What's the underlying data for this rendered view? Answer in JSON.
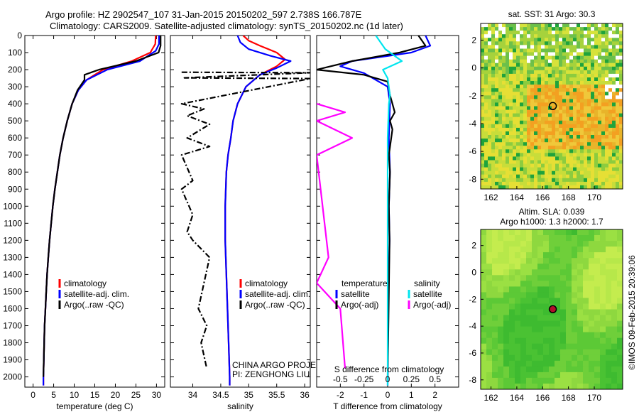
{
  "header": {
    "line1": "Argo profile: HZ 2902547_107 31-Jan-2015 20150202_597 2.738S 166.787E",
    "line2": "Climatology: CARS2009. Satellite-adjusted climatology: synTS_20150202.nc (1d later)"
  },
  "credit": "©IMOS 09-Feb-2015 20:39:06",
  "colors": {
    "climatology": "#ff0000",
    "satellite": "#0000ff",
    "argo": "#000000",
    "salinity_satellite": "#00e5ee",
    "salinity_argo": "#ff00ff"
  },
  "chart_data": [
    {
      "type": "line",
      "panel": "temperature",
      "xlabel": "temperature (deg C)",
      "xlim": [
        -2,
        32
      ],
      "xticks": [
        0,
        5,
        10,
        15,
        20,
        25,
        30
      ],
      "ylim": [
        0,
        2060
      ],
      "yticks": [
        0,
        100,
        200,
        300,
        400,
        500,
        600,
        700,
        800,
        900,
        1000,
        1100,
        1200,
        1300,
        1400,
        1500,
        1600,
        1700,
        1800,
        1900,
        2000
      ],
      "legend": [
        "climatology",
        "satellite-adj. clim.",
        "Argo(..raw -QC)"
      ],
      "series": [
        {
          "name": "climatology",
          "color": "#ff0000",
          "points": [
            [
              29.8,
              0
            ],
            [
              29.7,
              50
            ],
            [
              28.5,
              100
            ],
            [
              24,
              150
            ],
            [
              17,
              200
            ],
            [
              13,
              260
            ],
            [
              11,
              320
            ],
            [
              9.5,
              400
            ],
            [
              8.3,
              500
            ],
            [
              7.3,
              600
            ],
            [
              6.5,
              700
            ],
            [
              5.9,
              800
            ],
            [
              5.3,
              900
            ],
            [
              4.8,
              1000
            ],
            [
              4.4,
              1100
            ],
            [
              4.0,
              1200
            ],
            [
              3.7,
              1300
            ],
            [
              3.4,
              1400
            ],
            [
              3.2,
              1500
            ],
            [
              3.0,
              1600
            ],
            [
              2.8,
              1700
            ],
            [
              2.7,
              1800
            ],
            [
              2.6,
              1900
            ],
            [
              2.5,
              2000
            ],
            [
              2.5,
              2050
            ]
          ]
        },
        {
          "name": "satellite-adj. clim.",
          "color": "#0000ff",
          "points": [
            [
              30.6,
              0
            ],
            [
              30.6,
              50
            ],
            [
              29.8,
              90
            ],
            [
              26,
              150
            ],
            [
              18,
              200
            ],
            [
              13,
              260
            ],
            [
              11,
              320
            ],
            [
              9.5,
              400
            ],
            [
              8.3,
              500
            ],
            [
              7.3,
              600
            ],
            [
              6.5,
              700
            ],
            [
              5.9,
              800
            ],
            [
              5.3,
              900
            ],
            [
              4.8,
              1000
            ],
            [
              4.4,
              1100
            ],
            [
              4.0,
              1200
            ],
            [
              3.7,
              1300
            ],
            [
              3.4,
              1400
            ],
            [
              3.2,
              1500
            ],
            [
              3.0,
              1600
            ],
            [
              2.8,
              1700
            ],
            [
              2.7,
              1800
            ],
            [
              2.6,
              1900
            ],
            [
              2.5,
              2000
            ],
            [
              2.5,
              2050
            ]
          ]
        },
        {
          "name": "Argo(..raw -QC)",
          "color": "#000000",
          "points": [
            [
              31.0,
              0
            ],
            [
              31.0,
              60
            ],
            [
              30.5,
              100
            ],
            [
              25,
              150
            ],
            [
              16,
              200
            ],
            [
              12.5,
              230
            ],
            [
              12.5,
              260
            ],
            [
              10.8,
              320
            ],
            [
              9.5,
              400
            ],
            [
              8.3,
              500
            ],
            [
              7.3,
              600
            ],
            [
              6.5,
              700
            ],
            [
              5.9,
              800
            ],
            [
              5.3,
              900
            ],
            [
              4.8,
              1000
            ],
            [
              4.4,
              1100
            ],
            [
              4.0,
              1200
            ],
            [
              3.7,
              1300
            ],
            [
              3.4,
              1400
            ],
            [
              3.2,
              1500
            ],
            [
              3.0,
              1600
            ],
            [
              2.8,
              1700
            ],
            [
              2.7,
              1800
            ],
            [
              2.6,
              1900
            ],
            [
              2.5,
              2000
            ]
          ]
        }
      ]
    },
    {
      "type": "line",
      "panel": "salinity",
      "xlabel": "salinity",
      "xlim": [
        33.6,
        36.1
      ],
      "xticks": [
        34,
        34.5,
        35,
        35.5,
        36
      ],
      "ylim": [
        0,
        2060
      ],
      "legend": [
        "climatology",
        "satellite-adj. clim.",
        "Argo(..raw -QC)"
      ],
      "annotation": [
        "CHINA ARGO PROJECT",
        "PI: ZENGHONG LIU"
      ],
      "series": [
        {
          "name": "climatology",
          "color": "#ff0000",
          "points": [
            [
              34.9,
              0
            ],
            [
              35.0,
              30
            ],
            [
              35.2,
              60
            ],
            [
              35.5,
              100
            ],
            [
              35.65,
              140
            ],
            [
              35.5,
              180
            ],
            [
              35.2,
              230
            ],
            [
              34.95,
              300
            ],
            [
              34.8,
              400
            ],
            [
              34.72,
              500
            ],
            [
              34.68,
              600
            ],
            [
              34.63,
              700
            ],
            [
              34.6,
              800
            ],
            [
              34.58,
              1000
            ],
            [
              34.58,
              1200
            ],
            [
              34.6,
              1400
            ],
            [
              34.62,
              1600
            ],
            [
              34.64,
              1800
            ],
            [
              34.66,
              2000
            ],
            [
              34.66,
              2050
            ]
          ]
        },
        {
          "name": "satellite-adj. clim.",
          "color": "#0000ff",
          "points": [
            [
              34.8,
              0
            ],
            [
              34.85,
              40
            ],
            [
              35.0,
              80
            ],
            [
              35.4,
              120
            ],
            [
              35.75,
              150
            ],
            [
              35.5,
              190
            ],
            [
              35.2,
              230
            ],
            [
              34.95,
              300
            ],
            [
              34.8,
              400
            ],
            [
              34.72,
              500
            ],
            [
              34.68,
              600
            ],
            [
              34.63,
              700
            ],
            [
              34.6,
              800
            ],
            [
              34.58,
              1000
            ],
            [
              34.58,
              1200
            ],
            [
              34.6,
              1400
            ],
            [
              34.62,
              1600
            ],
            [
              34.64,
              1800
            ],
            [
              34.66,
              2000
            ],
            [
              34.66,
              2050
            ]
          ]
        },
        {
          "name": "Argo(..raw -QC)",
          "color": "#000000",
          "points": [
            [
              33.8,
              215
            ],
            [
              36.1,
              218
            ],
            [
              33.85,
              248
            ],
            [
              36.1,
              252
            ],
            [
              33.8,
              400
            ],
            [
              34.2,
              430
            ],
            [
              33.9,
              470
            ],
            [
              34.3,
              520
            ],
            [
              33.9,
              600
            ],
            [
              34.3,
              650
            ],
            [
              33.8,
              700
            ],
            [
              34.0,
              850
            ],
            [
              33.8,
              900
            ],
            [
              34.0,
              1050
            ],
            [
              33.9,
              1150
            ],
            [
              34.0,
              1200
            ],
            [
              34.3,
              1300
            ],
            [
              34.2,
              1450
            ],
            [
              34.1,
              1600
            ],
            [
              34.25,
              1700
            ],
            [
              34.15,
              1800
            ],
            [
              34.25,
              1950
            ]
          ]
        }
      ]
    },
    {
      "type": "line",
      "panel": "difference",
      "xlabel": "T difference from climatology",
      "xlabel_top": "S difference from climatology",
      "xlim": [
        -3,
        3
      ],
      "xticks": [
        -2,
        -1,
        0,
        1,
        2
      ],
      "xticks_top": [
        "-0.5",
        "-0.25",
        "0",
        "0.25",
        "0.5"
      ],
      "ylim": [
        0,
        2060
      ],
      "legend_temperature": {
        "title": "temperature",
        "items": [
          "satellite",
          "Argo(-adj)"
        ]
      },
      "legend_salinity": {
        "title": "salinity",
        "items": [
          "satellite",
          "Argo(-adj)"
        ]
      },
      "series": [
        {
          "name": "temperature satellite",
          "color": "#0000ff",
          "points": [
            [
              1.6,
              0
            ],
            [
              1.8,
              60
            ],
            [
              1.0,
              100
            ],
            [
              -1.5,
              150
            ],
            [
              -2.0,
              180
            ],
            [
              -1.0,
              220
            ],
            [
              0,
              300
            ],
            [
              0.1,
              400
            ],
            [
              0.05,
              600
            ],
            [
              0.1,
              800
            ],
            [
              0.05,
              1000
            ],
            [
              0.08,
              1200
            ],
            [
              0.03,
              1500
            ],
            [
              0,
              2050
            ]
          ]
        },
        {
          "name": "temperature Argo(-adj)",
          "color": "#000000",
          "points": [
            [
              1.3,
              0
            ],
            [
              1.6,
              60
            ],
            [
              0.5,
              100
            ],
            [
              -1.5,
              150
            ],
            [
              -3.0,
              200
            ],
            [
              -1.0,
              230
            ],
            [
              0,
              270
            ],
            [
              0.1,
              350
            ],
            [
              0.2,
              400
            ],
            [
              0.3,
              450
            ],
            [
              0.1,
              500
            ],
            [
              0.2,
              550
            ],
            [
              0.05,
              700
            ],
            [
              0.1,
              800
            ],
            [
              0.05,
              1000
            ],
            [
              0.08,
              1200
            ],
            [
              0.05,
              1500
            ],
            [
              0.02,
              1800
            ],
            [
              0,
              2000
            ]
          ]
        },
        {
          "name": "salinity satellite",
          "color": "#00e5ee",
          "points": [
            [
              -0.5,
              0
            ],
            [
              -0.1,
              80
            ],
            [
              0.6,
              150
            ],
            [
              -0.2,
              200
            ],
            [
              0,
              250
            ],
            [
              0.1,
              350
            ],
            [
              0.05,
              400
            ],
            [
              0,
              600
            ],
            [
              0,
              2050
            ]
          ]
        },
        {
          "name": "salinity Argo(-adj)",
          "color": "#ff00ff",
          "points": [
            [
              -3.0,
              400
            ],
            [
              -1.8,
              450
            ],
            [
              -3.0,
              500
            ],
            [
              -1.5,
              600
            ],
            [
              -3.0,
              700
            ],
            [
              -2.5,
              1300
            ],
            [
              -3.0,
              1450
            ],
            [
              -2.0,
              1600
            ],
            [
              -1.8,
              1950
            ]
          ]
        }
      ]
    },
    {
      "type": "heatmap",
      "panel": "map-sst",
      "title": "sat. SST: 31  Argo: 30.3",
      "xticks": [
        162,
        164,
        166,
        168,
        170
      ],
      "yticks": [
        2,
        0,
        -2,
        -4,
        -6,
        -8
      ],
      "xlim": [
        161.2,
        172.2
      ],
      "ylim": [
        -8.7,
        3.2
      ],
      "marker": {
        "lon": 166.787,
        "lat": -2.738,
        "style": "open-circle"
      }
    },
    {
      "type": "heatmap",
      "panel": "map-sla",
      "title": "Altim. SLA: 0.039",
      "subtitle": "Argo h1000: 1.3 h2000: 1.7",
      "xticks": [
        162,
        164,
        166,
        168,
        170
      ],
      "yticks": [
        2,
        0,
        -2,
        -4,
        -6,
        -8
      ],
      "xlim": [
        161.2,
        172.2
      ],
      "ylim": [
        -8.7,
        3.2
      ],
      "marker": {
        "lon": 166.787,
        "lat": -2.738,
        "style": "filled-circle"
      }
    }
  ]
}
